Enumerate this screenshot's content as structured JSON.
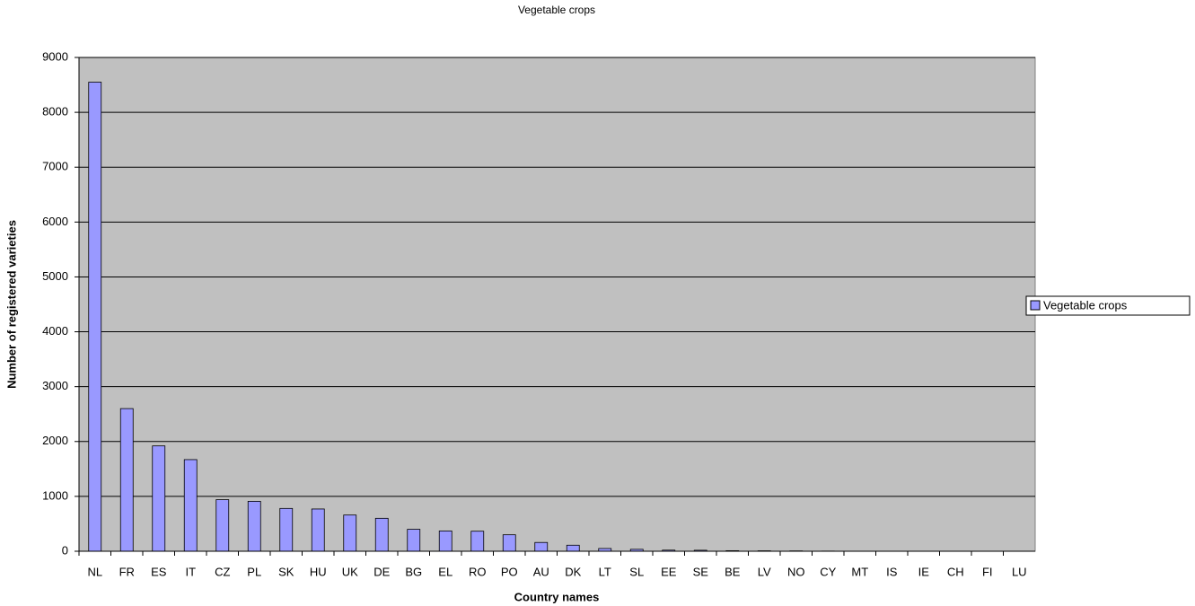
{
  "chart_data": {
    "type": "bar",
    "title": "Vegetable crops",
    "x_label": "Country names",
    "y_label": "Number of registered varieties",
    "categories": [
      "NL",
      "FR",
      "ES",
      "IT",
      "CZ",
      "PL",
      "SK",
      "HU",
      "UK",
      "DE",
      "BG",
      "EL",
      "RO",
      "PO",
      "AU",
      "DK",
      "LT",
      "SL",
      "EE",
      "SE",
      "BE",
      "LV",
      "NO",
      "CY",
      "MT",
      "IS",
      "IE",
      "CH",
      "FI",
      "LU"
    ],
    "series": [
      {
        "name": "Vegetable crops",
        "color": "#9999ff",
        "values": [
          8550,
          2600,
          1920,
          1670,
          940,
          910,
          780,
          770,
          660,
          600,
          400,
          370,
          365,
          300,
          160,
          110,
          50,
          35,
          20,
          18,
          10,
          8,
          6,
          3,
          0,
          0,
          0,
          0,
          0,
          0
        ]
      }
    ],
    "ylim": [
      0,
      9000
    ],
    "yticks": [
      0,
      1000,
      2000,
      3000,
      4000,
      5000,
      6000,
      7000,
      8000,
      9000
    ],
    "grid": true,
    "legend": "right"
  }
}
